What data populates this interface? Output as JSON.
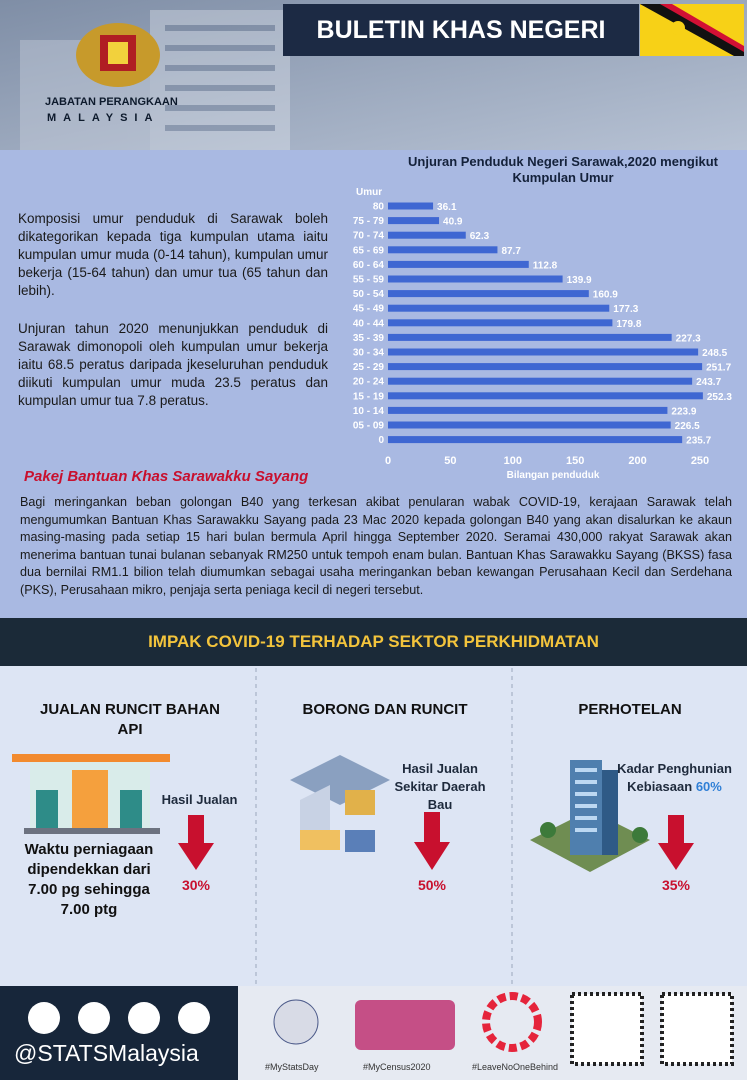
{
  "header": {
    "org_name": "JABATAN PERANGKAAN",
    "org_country": "MALAYSIA",
    "title": "BULETIN KHAS NEGERI"
  },
  "intro": [
    "Komposisi umur penduduk di Sarawak boleh dikategorikan kepada tiga kumpulan utama iaitu kumpulan umur muda (0-14 tahun), kumpulan umur bekerja (15-64 tahun) dan umur tua (65 tahun dan lebih).",
    "Unjuran tahun 2020 menunjukkan penduduk di Sarawak dimonopoli oleh kumpulan umur bekerja iaitu 68.5 peratus daripada jkeseluruhan penduduk diikuti kumpulan umur muda 23.5 peratus dan kumpulan umur tua 7.8 peratus."
  ],
  "chart_data": {
    "type": "hbar",
    "title": "Unjuran Penduduk Negeri Sarawak,2020 mengikut Kumpulan Umur",
    "y_label": "Umur",
    "x_label": "Bilangan penduduk",
    "categories": [
      "80",
      "75 - 79",
      "70 - 74",
      "65 - 69",
      "60 - 64",
      "55 - 59",
      "50 - 54",
      "45 - 49",
      "40 - 44",
      "35 - 39",
      "30 - 34",
      "25 - 29",
      "20 - 24",
      "15 - 19",
      "10 - 14",
      "05 - 09",
      "0"
    ],
    "values": [
      36.1,
      40.9,
      62.3,
      87.7,
      112.8,
      139.9,
      160.9,
      177.3,
      179.8,
      227.3,
      248.5,
      251.7,
      243.7,
      252.3,
      223.9,
      226.5,
      235.7
    ],
    "color": "#3f67d2",
    "xlim": [
      0,
      260
    ],
    "xticks": [
      0,
      50,
      100,
      150,
      200,
      250
    ],
    "grid": false
  },
  "pakej": {
    "title": "Pakej Bantuan Khas Sarawakku Sayang",
    "text": "Bagi meringankan beban golongan B40 yang terkesan akibat penularan wabak COVID-19, kerajaan Sarawak telah mengumumkan Bantuan Khas Sarawakku Sayang pada 23 Mac 2020 kepada golongan B40 yang akan disalurkan ke akaun masing-masing pada setiap 15 hari bulan bermula April hingga September 2020. Seramai 430,000 rakyat Sarawak akan menerima bantuan tunai bulanan sebanyak RM250 untuk tempoh enam bulan. Bantuan Khas Sarawakku Sayang (BKSS) fasa dua bernilai RM1.1 bilion telah diumumkan sebagai usaha meringankan beban kewangan Perusahaan Kecil dan Serdehana (PKS), Perusahaan mikro, penjaja serta peniaga kecil di negeri tersebut."
  },
  "impak": {
    "title": "IMPAK COVID-19 TERHADAP SEKTOR PERKHIDMATAN",
    "panels": [
      {
        "title": "JUALAN RUNCIT BAHAN API",
        "label": "Hasil Jualan",
        "value": "30%",
        "note": "Waktu perniagaan dipendekkan dari 7.00 pg sehingga 7.00 ptg"
      },
      {
        "title": "BORONG DAN RUNCIT",
        "label": "Hasil Jualan Sekitar Daerah Bau",
        "value": "50%"
      },
      {
        "title": "PERHOTELAN",
        "label": "Kadar Penghunian Kebiasaan",
        "highlight": "60%",
        "value": "35%"
      }
    ]
  },
  "footer": {
    "handle": "@STATSMalaysia",
    "hashtags": [
      "#MyStatsDay",
      "#MyCensus2020",
      "#LeaveNoOneBehind"
    ]
  }
}
